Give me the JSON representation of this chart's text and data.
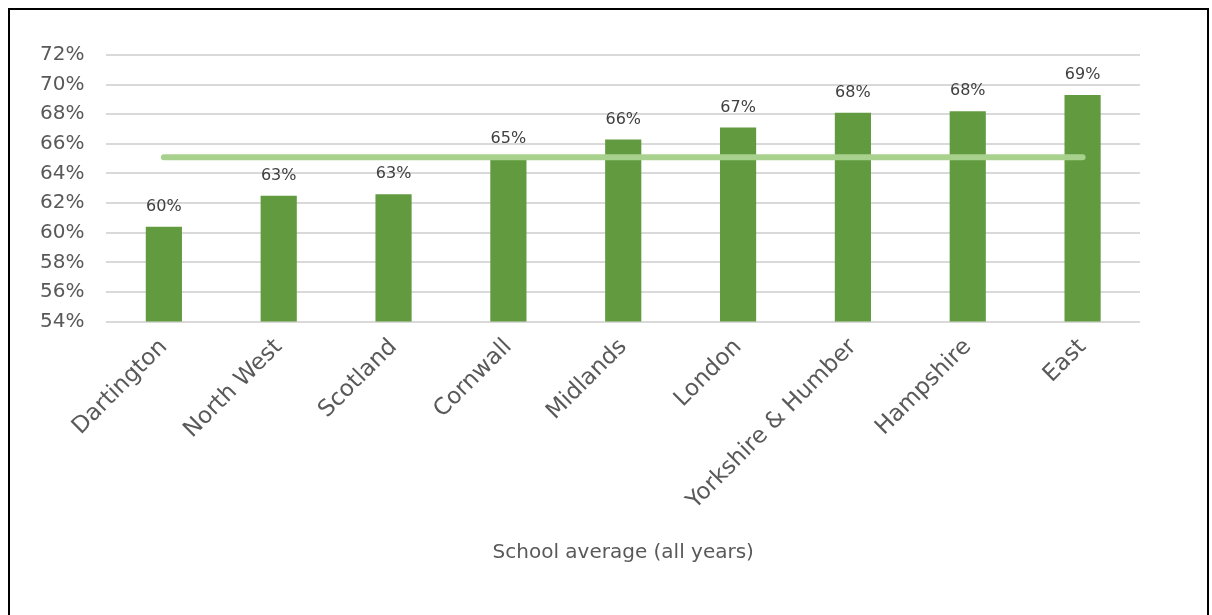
{
  "chart_data": {
    "type": "bar",
    "xlabel": "School average (all years)",
    "categories": [
      "Dartington",
      "North West",
      "Scotland",
      "Cornwall",
      "Midlands",
      "London",
      "Yorkshire & Humber",
      "Hampshire",
      "East"
    ],
    "values": [
      60.4,
      62.5,
      62.6,
      65.0,
      66.3,
      67.1,
      68.1,
      68.2,
      69.3
    ],
    "value_labels": [
      "60%",
      "63%",
      "63%",
      "65%",
      "66%",
      "67%",
      "68%",
      "68%",
      "69%"
    ],
    "color": "#629a3f",
    "ylim": [
      54,
      72
    ],
    "yticks": [
      {
        "value": 54,
        "label": "54%"
      },
      {
        "value": 56,
        "label": "56%"
      },
      {
        "value": 58,
        "label": "58%"
      },
      {
        "value": 60,
        "label": "60%"
      },
      {
        "value": 62,
        "label": "62%"
      },
      {
        "value": 64,
        "label": "64%"
      },
      {
        "value": 66,
        "label": "66%"
      },
      {
        "value": 68,
        "label": "68%"
      },
      {
        "value": 70,
        "label": "70%"
      },
      {
        "value": 72,
        "label": "72%"
      }
    ],
    "ref_lines": [
      {
        "axis": "y",
        "value": 65.1,
        "color": "#a9d18e"
      }
    ],
    "grid": "y"
  }
}
